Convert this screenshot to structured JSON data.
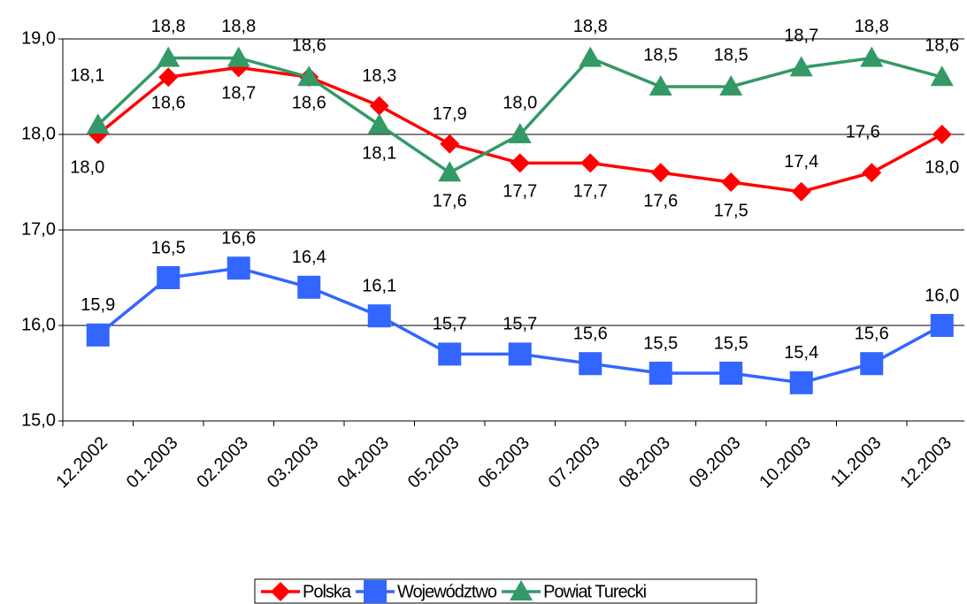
{
  "chart_data": {
    "type": "line",
    "categories": [
      "12.2002",
      "01.2003",
      "02.2003",
      "03.2003",
      "04.2003",
      "05.2003",
      "06.2003",
      "07.2003",
      "08.2003",
      "09.2003",
      "10.2003",
      "11.2003",
      "12.2003"
    ],
    "series": [
      {
        "name": "Polska",
        "color": "#ff0000",
        "marker": "diamond",
        "values": [
          18.0,
          18.6,
          18.7,
          18.6,
          18.3,
          17.9,
          17.7,
          17.7,
          17.6,
          17.5,
          17.4,
          17.6,
          18.0
        ],
        "value_labels": [
          "18,0",
          "18,6",
          "18,7",
          "18,6",
          "18,3",
          "17,9",
          "17,7",
          "17,7",
          "17,6",
          "17,5",
          "17,4",
          "17,6",
          "18,0"
        ]
      },
      {
        "name": "Województwo",
        "color": "#3366ff",
        "marker": "square",
        "values": [
          15.9,
          16.5,
          16.6,
          16.4,
          16.1,
          15.7,
          15.7,
          15.6,
          15.5,
          15.5,
          15.4,
          15.6,
          16.0
        ],
        "value_labels": [
          "15,9",
          "16,5",
          "16,6",
          "16,4",
          "16,1",
          "15,7",
          "15,7",
          "15,6",
          "15,5",
          "15,5",
          "15,4",
          "15,6",
          "16,0"
        ]
      },
      {
        "name": "Powiat Turecki",
        "color": "#339966",
        "marker": "triangle",
        "values": [
          18.1,
          18.8,
          18.8,
          18.6,
          18.1,
          17.6,
          18.0,
          18.8,
          18.5,
          18.5,
          18.7,
          18.8,
          18.6
        ],
        "value_labels": [
          "18,1",
          "18,8",
          "18,8",
          "18,6",
          "18,1",
          "17,6",
          "18,0",
          "18,8",
          "18,5",
          "18,5",
          "18,7",
          "18,8",
          "18,6"
        ]
      }
    ],
    "ylim": [
      15,
      19
    ],
    "yticks": [
      {
        "value": 15,
        "label": "15,0"
      },
      {
        "value": 16,
        "label": "16,0"
      },
      {
        "value": 17,
        "label": "17,0"
      },
      {
        "value": 18,
        "label": "18,0"
      },
      {
        "value": 19,
        "label": "19,0"
      }
    ],
    "grid": true,
    "legend": "bottom"
  }
}
